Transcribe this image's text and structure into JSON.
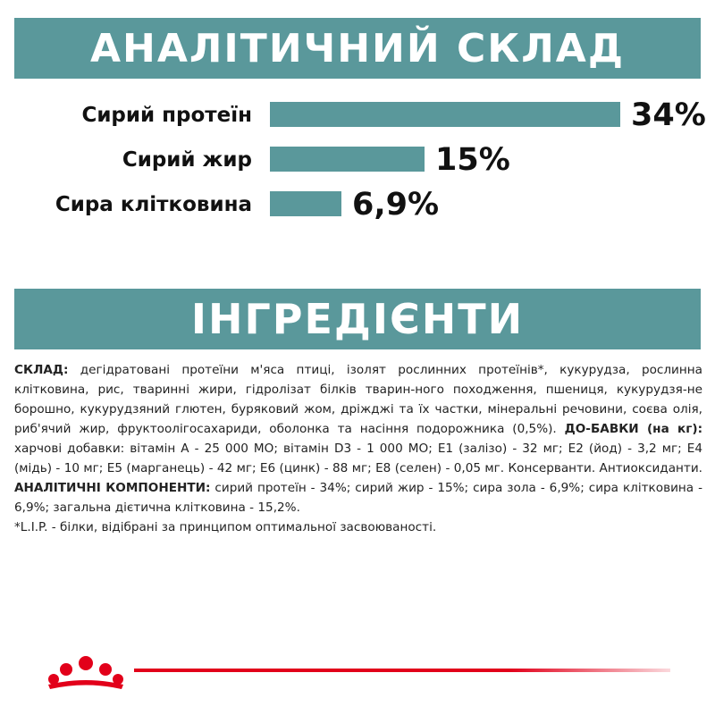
{
  "analysis": {
    "title": "АНАЛІТИЧНИЙ СКЛАД",
    "rows": [
      {
        "label": "Сирий протеїн",
        "value_text": "34%",
        "value": 34
      },
      {
        "label": "Сирий жир",
        "value_text": "15%",
        "value": 15
      },
      {
        "label": "Сира клітковина",
        "value_text": "6,9%",
        "value": 6.9
      }
    ]
  },
  "ingredients": {
    "title": "ІНГРЕДІЄНТИ",
    "composition_label": "СКЛАД:",
    "composition_text": " дегідратовані протеїни м'яса птиці, ізолят рослинних протеїнів*, кукурудза, рослинна клітковина, рис, тваринні жири, гідролізат білків тварин-ного походження, пшениця, кукурудзя-не борошно, кукурудзяний глютен, буряковий жом, дріжджі та їх частки, мінеральні речовини, соєва олія, риб'ячий жир, фруктоолігосахариди, оболонка та насіння подорожника (0,5%). ",
    "additives_label": "ДО-БАВКИ (на кг):",
    "additives_text": " харчові добавки: вітамін A - 25 000 МО; вітамін D3 - 1 000 МО; E1 (залізо) - 32 мг; E2 (йод) - 3,2 мг; E4 (мідь) - 10 мг; E5 (марганець) - 42 мг; E6 (цинк) - 88 мг; E8 (селен) - 0,05 мг. Консерванти. Антиоксиданти. ",
    "components_label": "АНАЛІТИЧНІ КОМПОНЕНТИ:",
    "components_text": " сирий протеїн - 34%; сирий жир - 15%; сира зола - 6,9%; сира клітковина - 6,9%; загальна дієтична клітковина - 15,2%.",
    "footnote": "*L.I.P. - білки, відібрані за принципом оптимальної засвоюваності."
  },
  "colors": {
    "accent": "#5a989b",
    "brand_red": "#e2001a"
  },
  "icons": {
    "logo": "royal-canin-crown-icon"
  }
}
